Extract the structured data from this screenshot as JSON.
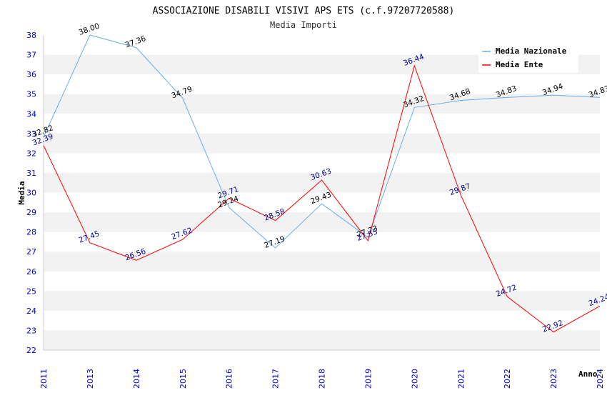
{
  "chart_data": {
    "type": "line",
    "title": "ASSOCIAZIONE DISABILI VISIVI APS ETS (c.f.97207720588)",
    "subtitle": "Media Importi",
    "xlabel": "Anno",
    "ylabel": "Media",
    "ylim": [
      22,
      38
    ],
    "yticks": [
      22,
      23,
      24,
      25,
      26,
      27,
      28,
      29,
      30,
      31,
      32,
      33,
      34,
      35,
      36,
      37,
      38
    ],
    "x": [
      "2011",
      "2013",
      "2014",
      "2015",
      "2016",
      "2017",
      "2018",
      "2019",
      "2020",
      "2021",
      "2022",
      "2023",
      "2024"
    ],
    "grid": "horizontal alternating bands",
    "legend_position": "top-right",
    "series": [
      {
        "name": "Media Nazionale",
        "color": "#6aaee8",
        "label_color": "#000000",
        "values": [
          32.82,
          38.0,
          37.36,
          34.79,
          29.24,
          27.19,
          29.43,
          27.73,
          34.32,
          34.68,
          34.83,
          34.94,
          34.83
        ],
        "labels": [
          "32.82",
          "38.00",
          "37.36",
          "34.79",
          "29.24",
          "27.19",
          "29.43",
          "27.73",
          "34.32",
          "34.68",
          "34.83",
          "34.94",
          "34.83"
        ]
      },
      {
        "name": "Media Ente",
        "color": "#ff0000",
        "label_color": "#00008b",
        "values": [
          32.39,
          27.45,
          26.56,
          27.62,
          29.71,
          28.58,
          30.63,
          27.55,
          36.44,
          29.87,
          24.72,
          22.92,
          24.24
        ],
        "labels": [
          "32.39",
          "27.45",
          "26.56",
          "27.62",
          "29.71",
          "28.58",
          "30.63",
          "27.55",
          "36.44",
          "29.87",
          "24.72",
          "22.92",
          "24.24"
        ]
      }
    ]
  }
}
